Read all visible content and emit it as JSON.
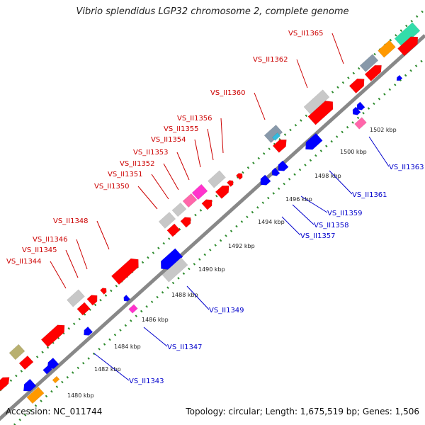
{
  "title": "Vibrio splendidus LGP32 chromosome 2, complete genome",
  "footer": {
    "accession": "Accession: NC_011744",
    "summary": "Topology: circular; Length: 1,675,519 bp; Genes: 1,506"
  },
  "colors": {
    "backbone": "#888888",
    "dots": "#2e8b2e",
    "label_forward": "#cc0000",
    "label_reverse": "#0000cc",
    "red": "#ff0000",
    "blue": "#0000ff",
    "grey": "#c8c8c8",
    "pink": "#ff66aa",
    "magenta": "#ff33cc",
    "orange": "#ff9900",
    "olive": "#b8b070",
    "teal": "#33ddaa",
    "cyan": "#33bbdd",
    "slate": "#8899aa"
  },
  "scale": {
    "ticks": [
      "1480 kbp",
      "1482 kbp",
      "1484 kbp",
      "1486 kbp",
      "1488 kbp",
      "1490 kbp",
      "1492 kbp",
      "1494 kbp",
      "1496 kbp",
      "1498 kbp",
      "1500 kbp",
      "1502 kbp"
    ]
  },
  "gene_labels": {
    "forward": [
      "VS_II1344",
      "VS_II1345",
      "VS_II1346",
      "VS_II1348",
      "VS_II1350",
      "VS_II1351",
      "VS_II1352",
      "VS_II1353",
      "VS_II1354",
      "VS_II1355",
      "VS_II1356",
      "VS_II1360",
      "VS_II1362",
      "VS_II1365"
    ],
    "reverse": [
      "VS_II1343",
      "VS_II1347",
      "VS_II1349",
      "VS_II1357",
      "VS_II1358",
      "VS_II1359",
      "VS_II1361",
      "VS_II1363"
    ]
  }
}
